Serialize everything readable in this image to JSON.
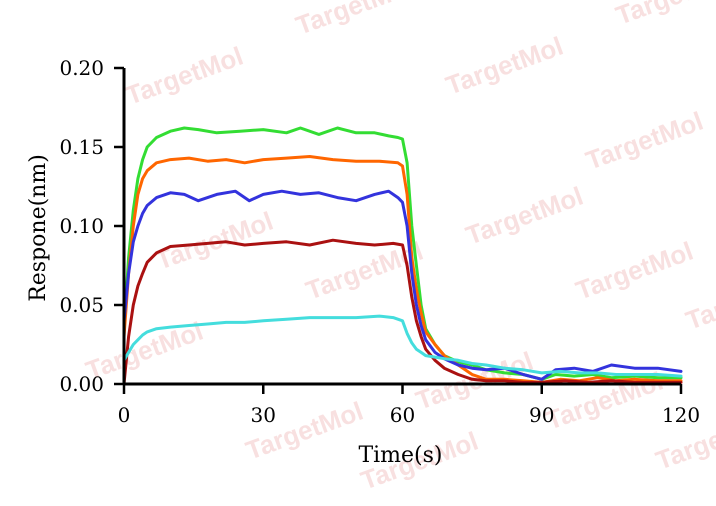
{
  "watermark": "TargetMol",
  "chart_data": {
    "type": "line",
    "title": "",
    "xlabel": "Time(s)",
    "ylabel": "Respone(nm)",
    "xlim": [
      0,
      120
    ],
    "ylim": [
      0,
      0.2
    ],
    "xticks": [
      0,
      30,
      60,
      90,
      120
    ],
    "xtick_labels": [
      "0",
      "30",
      "60",
      "90",
      "120"
    ],
    "yticks": [
      0,
      0.05,
      0.1,
      0.15,
      0.2
    ],
    "ytick_labels": [
      "0.00",
      "0.05",
      "0.10",
      "0.15",
      "0.20"
    ],
    "grid": false,
    "legend": "none",
    "series": [
      {
        "color": "#33dd33",
        "points": [
          [
            0,
            0.035
          ],
          [
            1,
            0.08
          ],
          [
            2,
            0.11
          ],
          [
            3,
            0.13
          ],
          [
            4,
            0.142
          ],
          [
            5,
            0.15
          ],
          [
            7,
            0.156
          ],
          [
            10,
            0.16
          ],
          [
            13,
            0.162
          ],
          [
            16,
            0.161
          ],
          [
            20,
            0.159
          ],
          [
            25,
            0.16
          ],
          [
            30,
            0.161
          ],
          [
            35,
            0.159
          ],
          [
            38,
            0.162
          ],
          [
            42,
            0.158
          ],
          [
            46,
            0.162
          ],
          [
            50,
            0.159
          ],
          [
            54,
            0.159
          ],
          [
            57,
            0.157
          ],
          [
            59,
            0.156
          ],
          [
            60,
            0.155
          ],
          [
            61,
            0.14
          ],
          [
            62,
            0.1
          ],
          [
            63,
            0.075
          ],
          [
            64,
            0.05
          ],
          [
            65,
            0.035
          ],
          [
            67,
            0.025
          ],
          [
            69,
            0.018
          ],
          [
            72,
            0.014
          ],
          [
            75,
            0.012
          ],
          [
            78,
            0.009
          ],
          [
            82,
            0.007
          ],
          [
            86,
            0.006
          ],
          [
            90,
            0.003
          ],
          [
            93,
            0.006
          ],
          [
            97,
            0.005
          ],
          [
            101,
            0.006
          ],
          [
            105,
            0.004
          ],
          [
            110,
            0.005
          ],
          [
            115,
            0.004
          ],
          [
            120,
            0.004
          ]
        ]
      },
      {
        "color": "#ff6600",
        "points": [
          [
            0,
            0.03
          ],
          [
            1,
            0.07
          ],
          [
            2,
            0.1
          ],
          [
            3,
            0.12
          ],
          [
            4,
            0.13
          ],
          [
            5,
            0.135
          ],
          [
            7,
            0.14
          ],
          [
            10,
            0.142
          ],
          [
            14,
            0.143
          ],
          [
            18,
            0.141
          ],
          [
            22,
            0.142
          ],
          [
            26,
            0.14
          ],
          [
            30,
            0.142
          ],
          [
            35,
            0.143
          ],
          [
            40,
            0.144
          ],
          [
            45,
            0.142
          ],
          [
            50,
            0.141
          ],
          [
            55,
            0.141
          ],
          [
            59,
            0.14
          ],
          [
            60,
            0.138
          ],
          [
            61,
            0.12
          ],
          [
            62,
            0.08
          ],
          [
            63,
            0.06
          ],
          [
            64,
            0.045
          ],
          [
            65,
            0.033
          ],
          [
            67,
            0.025
          ],
          [
            69,
            0.018
          ],
          [
            72,
            0.012
          ],
          [
            75,
            0.006
          ],
          [
            78,
            0.003
          ],
          [
            82,
            0.003
          ],
          [
            86,
            0.002
          ],
          [
            90,
            0.001
          ],
          [
            94,
            0.003
          ],
          [
            98,
            0.002
          ],
          [
            102,
            0.004
          ],
          [
            106,
            0.002
          ],
          [
            110,
            0.003
          ],
          [
            115,
            0.002
          ],
          [
            120,
            0.002
          ]
        ]
      },
      {
        "color": "#3333dd",
        "points": [
          [
            0,
            0.04
          ],
          [
            1,
            0.07
          ],
          [
            2,
            0.09
          ],
          [
            3,
            0.1
          ],
          [
            4,
            0.108
          ],
          [
            5,
            0.113
          ],
          [
            7,
            0.118
          ],
          [
            10,
            0.121
          ],
          [
            13,
            0.12
          ],
          [
            16,
            0.116
          ],
          [
            20,
            0.12
          ],
          [
            24,
            0.122
          ],
          [
            27,
            0.116
          ],
          [
            30,
            0.12
          ],
          [
            34,
            0.122
          ],
          [
            38,
            0.12
          ],
          [
            42,
            0.121
          ],
          [
            46,
            0.118
          ],
          [
            50,
            0.116
          ],
          [
            54,
            0.12
          ],
          [
            57,
            0.122
          ],
          [
            59,
            0.118
          ],
          [
            60,
            0.115
          ],
          [
            61,
            0.1
          ],
          [
            62,
            0.07
          ],
          [
            63,
            0.05
          ],
          [
            64,
            0.037
          ],
          [
            65,
            0.028
          ],
          [
            67,
            0.02
          ],
          [
            69,
            0.016
          ],
          [
            72,
            0.012
          ],
          [
            75,
            0.01
          ],
          [
            78,
            0.009
          ],
          [
            82,
            0.01
          ],
          [
            86,
            0.006
          ],
          [
            90,
            0.003
          ],
          [
            93,
            0.009
          ],
          [
            97,
            0.01
          ],
          [
            101,
            0.008
          ],
          [
            105,
            0.012
          ],
          [
            110,
            0.01
          ],
          [
            115,
            0.01
          ],
          [
            120,
            0.008
          ]
        ]
      },
      {
        "color": "#aa1111",
        "points": [
          [
            0,
            0.0
          ],
          [
            1,
            0.03
          ],
          [
            2,
            0.05
          ],
          [
            3,
            0.062
          ],
          [
            4,
            0.07
          ],
          [
            5,
            0.077
          ],
          [
            7,
            0.083
          ],
          [
            10,
            0.087
          ],
          [
            14,
            0.088
          ],
          [
            18,
            0.089
          ],
          [
            22,
            0.09
          ],
          [
            26,
            0.088
          ],
          [
            30,
            0.089
          ],
          [
            35,
            0.09
          ],
          [
            40,
            0.088
          ],
          [
            45,
            0.091
          ],
          [
            50,
            0.089
          ],
          [
            54,
            0.088
          ],
          [
            58,
            0.089
          ],
          [
            60,
            0.088
          ],
          [
            61,
            0.075
          ],
          [
            62,
            0.055
          ],
          [
            63,
            0.04
          ],
          [
            64,
            0.03
          ],
          [
            65,
            0.022
          ],
          [
            67,
            0.015
          ],
          [
            69,
            0.01
          ],
          [
            72,
            0.006
          ],
          [
            75,
            0.003
          ],
          [
            78,
            0.002
          ],
          [
            82,
            0.002
          ],
          [
            86,
            0.001
          ],
          [
            90,
            0.001
          ],
          [
            95,
            0.002
          ],
          [
            100,
            0.001
          ],
          [
            105,
            0.002
          ],
          [
            110,
            0.001
          ],
          [
            115,
            0.001
          ],
          [
            120,
            0.001
          ]
        ]
      },
      {
        "color": "#44dddd",
        "points": [
          [
            0,
            0.015
          ],
          [
            1,
            0.02
          ],
          [
            2,
            0.025
          ],
          [
            3,
            0.028
          ],
          [
            4,
            0.031
          ],
          [
            5,
            0.033
          ],
          [
            7,
            0.035
          ],
          [
            10,
            0.036
          ],
          [
            14,
            0.037
          ],
          [
            18,
            0.038
          ],
          [
            22,
            0.039
          ],
          [
            26,
            0.039
          ],
          [
            30,
            0.04
          ],
          [
            35,
            0.041
          ],
          [
            40,
            0.042
          ],
          [
            45,
            0.042
          ],
          [
            50,
            0.042
          ],
          [
            55,
            0.043
          ],
          [
            58,
            0.042
          ],
          [
            60,
            0.04
          ],
          [
            61,
            0.032
          ],
          [
            62,
            0.026
          ],
          [
            63,
            0.022
          ],
          [
            64,
            0.02
          ],
          [
            65,
            0.018
          ],
          [
            67,
            0.017
          ],
          [
            69,
            0.016
          ],
          [
            72,
            0.015
          ],
          [
            75,
            0.013
          ],
          [
            78,
            0.012
          ],
          [
            82,
            0.01
          ],
          [
            86,
            0.009
          ],
          [
            90,
            0.007
          ],
          [
            94,
            0.008
          ],
          [
            98,
            0.007
          ],
          [
            102,
            0.007
          ],
          [
            106,
            0.006
          ],
          [
            110,
            0.006
          ],
          [
            115,
            0.006
          ],
          [
            120,
            0.005
          ]
        ]
      }
    ]
  }
}
